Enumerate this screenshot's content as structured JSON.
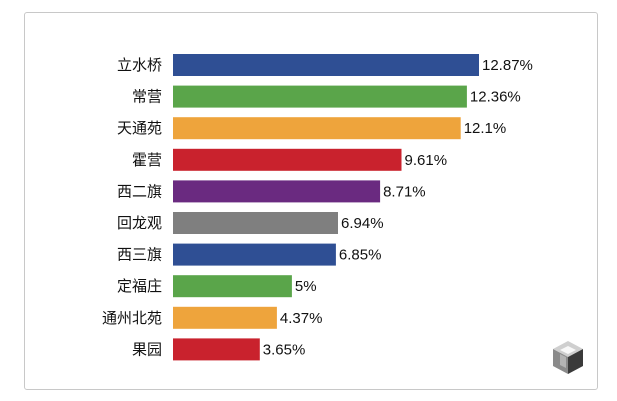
{
  "chart_data": {
    "type": "bar",
    "orientation": "horizontal",
    "categories": [
      "立水桥",
      "常营",
      "天通苑",
      "霍营",
      "西二旗",
      "回龙观",
      "西三旗",
      "定福庄",
      "通州北苑",
      "果园"
    ],
    "values": [
      12.87,
      12.36,
      12.1,
      9.61,
      8.71,
      6.94,
      6.85,
      5,
      4.37,
      3.65
    ],
    "value_labels": [
      "12.87%",
      "12.36%",
      "12.1%",
      "9.61%",
      "8.71%",
      "6.94%",
      "6.85%",
      "5%",
      "4.37%",
      "3.65%"
    ],
    "colors": [
      "#2f4f94",
      "#5aa54a",
      "#eea43c",
      "#c9222d",
      "#6a2a80",
      "#7f7f7f",
      "#2f4f94",
      "#5aa54a",
      "#eea43c",
      "#c9222d"
    ],
    "grid": false,
    "legend": "none"
  },
  "logo": {
    "icon": "cube-logo-icon",
    "colors": [
      "#3a3a3a",
      "#8a8a8a",
      "#cfcfcf"
    ]
  }
}
